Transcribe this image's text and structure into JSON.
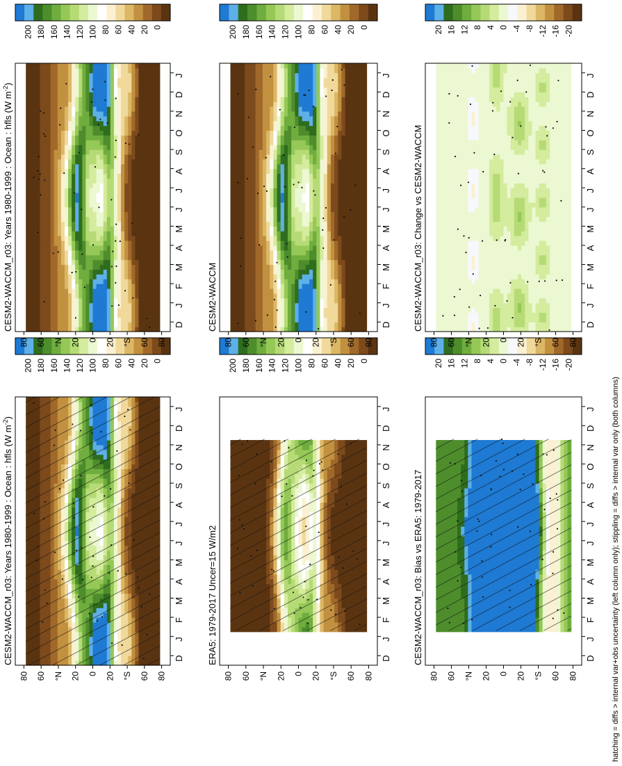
{
  "figure": {
    "footnote": "hatching = diffs > internal var+obs uncertainty (left column only); stippling = diffs > internal var only (both columns)"
  },
  "colormaps": {
    "flux": [
      "#1e7ad3",
      "#5db0e8",
      "#2f6d1e",
      "#4e8d2c",
      "#6fad3e",
      "#95c857",
      "#b6db76",
      "#d4ec9d",
      "#ecf8d2",
      "#ffffff",
      "#fbf1d2",
      "#f0d99a",
      "#dcb765",
      "#c29140",
      "#a0692a",
      "#7d4a1c",
      "#5a3411"
    ],
    "diff": [
      "#1e7ad3",
      "#5db0e8",
      "#2f6d1e",
      "#4e8d2c",
      "#6fad3e",
      "#95c857",
      "#b6db76",
      "#d4ec9d",
      "#ecf8d2",
      "#f6f8fc",
      "#fbf1d2",
      "#f0d99a",
      "#dcb765",
      "#c29140",
      "#a0692a",
      "#7d4a1c",
      "#5a3411"
    ]
  },
  "x_axis": {
    "months": [
      "D",
      "J",
      "F",
      "M",
      "A",
      "M",
      "J",
      "J",
      "A",
      "S",
      "O",
      "N",
      "D",
      "J"
    ]
  },
  "y_axis": {
    "ticks": [
      "80",
      "60",
      "°N",
      "20",
      "0",
      "20",
      "°S",
      "60",
      "80"
    ]
  },
  "colorbars": {
    "flux": {
      "labels": [
        "200",
        "180",
        "160",
        "140",
        "120",
        "100",
        "80",
        "60",
        "40",
        "20",
        "0"
      ]
    },
    "diff": {
      "labels": [
        "20",
        "16",
        "12",
        "8",
        "4",
        "0",
        "-4",
        "-8",
        "-12",
        "-16",
        "-20"
      ]
    }
  },
  "chart_data": [
    {
      "type": "heatmap",
      "panel": "top-left",
      "title": "CESM2-WACCM_r03: Years 1980-1999 : Ocean : hfls (W m",
      "title_sup": "-2",
      "title_end": ")",
      "field": "model",
      "range": [
        0,
        200
      ],
      "valid_months": [
        0,
        14
      ],
      "hatching": true,
      "stippling": true
    },
    {
      "type": "heatmap",
      "panel": "top-right",
      "title": "CESM2-WACCM_r03: Years 1980-1999 : Ocean : hfls (W m",
      "title_sup": "-2",
      "title_end": ")",
      "field": "model",
      "range": [
        0,
        200
      ],
      "valid_months": [
        0,
        14
      ],
      "hatching": false,
      "stippling": true
    },
    {
      "type": "heatmap",
      "panel": "middle-left",
      "title": "ERA5: 1979-2017 Uncer=15 W/m2",
      "title_sup": "",
      "title_end": "",
      "field": "obs",
      "range": [
        0,
        200
      ],
      "valid_months": [
        1.8,
        11.8
      ],
      "hatching": true,
      "stippling": true
    },
    {
      "type": "heatmap",
      "panel": "middle-right",
      "title": "CESM2-WACCM",
      "title_sup": "",
      "title_end": "",
      "field": "model",
      "range": [
        0,
        200
      ],
      "valid_months": [
        0,
        14
      ],
      "hatching": false,
      "stippling": true
    },
    {
      "type": "heatmap",
      "panel": "bottom-left",
      "title": "CESM2-WACCM_r03: Bias vs ERA5: 1979-2017",
      "title_sup": "",
      "title_end": "",
      "field": "bias",
      "range": [
        -20,
        20
      ],
      "valid_months": [
        1.8,
        11.8
      ],
      "hatching": true,
      "stippling": true
    },
    {
      "type": "heatmap",
      "panel": "bottom-right",
      "title": "CESM2-WACCM_r03: Change vs CESM2-WACCM",
      "title_sup": "",
      "title_end": "",
      "field": "change",
      "range": [
        -20,
        20
      ],
      "valid_months": [
        0,
        14
      ],
      "hatching": false,
      "stippling": true
    }
  ]
}
